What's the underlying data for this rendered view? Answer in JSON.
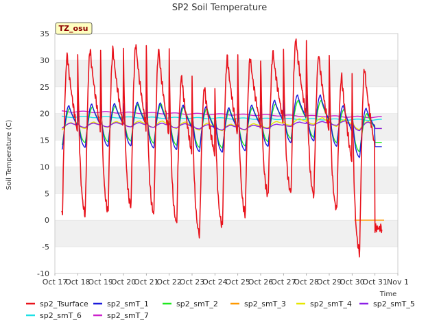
{
  "chart_data": {
    "type": "line",
    "title": "SP2 Soil Temperature",
    "xlabel": "Time",
    "ylabel": "Soil Temperature (C)",
    "ylim": [
      -10,
      35
    ],
    "yticks": [
      -10,
      -5,
      0,
      5,
      10,
      15,
      20,
      25,
      30,
      35
    ],
    "xlim_days": [
      0,
      15
    ],
    "x_tick_labels": [
      "Oct 17",
      "Oct 18",
      "Oct 19",
      "Oct 20",
      "Oct 21",
      "Oct 22",
      "Oct 23",
      "Oct 24",
      "Oct 25",
      "Oct 26",
      "Oct 27",
      "Oct 28",
      "Oct 29",
      "Oct 30",
      "Oct 31",
      "Nov 1"
    ],
    "grid": "horizontal bands",
    "legend": "bottom",
    "annotation": "TZ_osu",
    "series": [
      {
        "name": "sp2_Tsurface",
        "color": "#e8131c",
        "daily_max": [
          31.0,
          32.0,
          32.0,
          33.0,
          32.0,
          27.0,
          25.0,
          30.5,
          30.5,
          31.5,
          34.0,
          31.0,
          27.0,
          28.5
        ],
        "daily_min": [
          1.0,
          1.0,
          1.5,
          2.5,
          1.0,
          -0.8,
          -2.8,
          -1.2,
          1.0,
          4.5,
          5.0,
          4.5,
          1.8,
          -6.2
        ],
        "end_value": -1.5
      },
      {
        "name": "sp2_smT_1",
        "color": "#1a1adb",
        "daily_max": [
          21.5,
          21.8,
          21.9,
          22.1,
          22.0,
          21.6,
          21.3,
          21.1,
          21.6,
          22.5,
          23.5,
          23.5,
          21.5,
          21.0
        ],
        "daily_min": [
          13.3,
          13.6,
          13.8,
          13.9,
          13.5,
          13.2,
          12.8,
          12.7,
          13.0,
          13.8,
          14.5,
          14.8,
          13.8,
          11.7
        ],
        "end_value": 13.8
      },
      {
        "name": "sp2_smT_2",
        "color": "#1ee81e",
        "daily_max": [
          21.0,
          21.3,
          21.5,
          21.8,
          21.8,
          21.3,
          21.0,
          20.8,
          21.2,
          21.8,
          22.5,
          22.5,
          20.8,
          20.0
        ],
        "daily_min": [
          14.2,
          14.5,
          14.7,
          14.8,
          14.4,
          14.0,
          13.6,
          13.5,
          13.9,
          14.7,
          15.3,
          15.5,
          14.5,
          12.8
        ],
        "end_value": 14.6
      },
      {
        "name": "sp2_smT_3",
        "color": "#ff9900",
        "points": [
          [
            13.1,
            0.0
          ],
          [
            14.4,
            0.0
          ]
        ]
      },
      {
        "name": "sp2_smT_4",
        "color": "#e6e600",
        "daily_max": [
          18.3,
          18.4,
          18.5,
          18.6,
          18.6,
          18.4,
          18.2,
          18.0,
          18.1,
          18.5,
          19.0,
          19.2,
          18.9,
          18.5
        ],
        "daily_min": [
          17.0,
          17.2,
          17.4,
          17.5,
          17.4,
          17.2,
          16.9,
          16.8,
          16.9,
          17.3,
          17.8,
          18.0,
          17.6,
          17.0
        ],
        "end_value": 17.2
      },
      {
        "name": "sp2_smT_5",
        "color": "#8b1ee6",
        "daily_max": [
          18.2,
          18.2,
          18.3,
          18.3,
          18.2,
          18.1,
          17.9,
          17.8,
          17.8,
          18.0,
          18.4,
          18.5,
          18.6,
          18.4
        ],
        "daily_min": [
          17.3,
          17.4,
          17.5,
          17.5,
          17.4,
          17.3,
          17.1,
          16.9,
          17.0,
          17.2,
          17.6,
          17.8,
          17.8,
          16.8
        ],
        "end_value": 17.2
      },
      {
        "name": "sp2_smT_6",
        "color": "#1ee0e6",
        "start": 19.4,
        "end": 18.8
      },
      {
        "name": "sp2_smT_7",
        "color": "#cc22cc",
        "start": 20.4,
        "end": 19.3
      }
    ]
  }
}
